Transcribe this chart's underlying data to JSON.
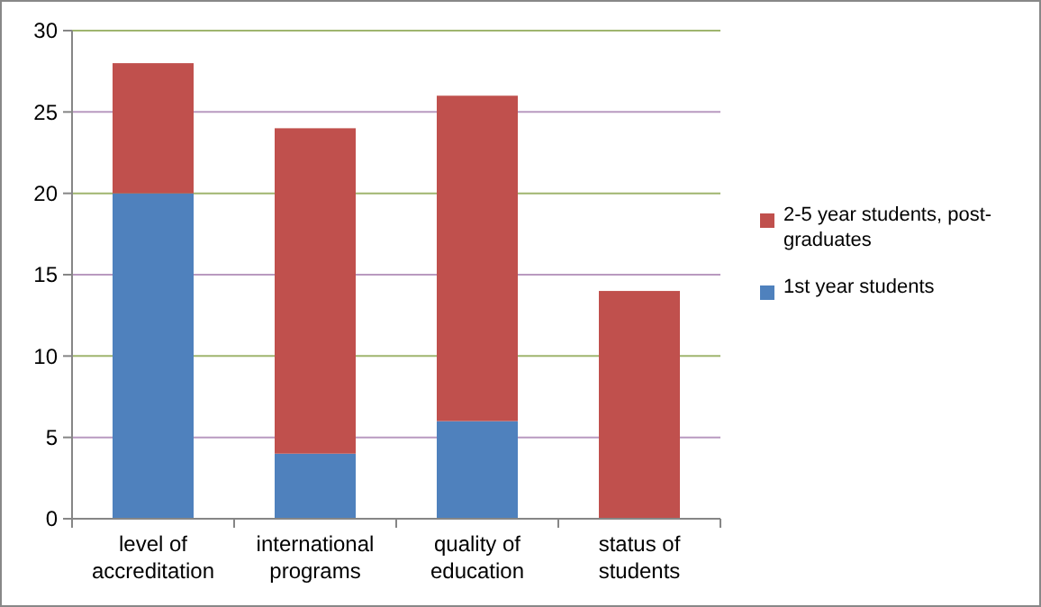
{
  "chart_data": {
    "type": "bar",
    "stacked": true,
    "categories": [
      "level of accreditation",
      "international programs",
      "quality of education",
      "status of students"
    ],
    "series": [
      {
        "name": "1st year students",
        "color": "#4f81bd",
        "values": [
          20,
          4,
          6,
          0
        ]
      },
      {
        "name": "2-5 year students, post-graduates",
        "color": "#c0504d",
        "values": [
          8,
          20,
          20,
          14
        ]
      }
    ],
    "ylim": [
      0,
      30
    ],
    "yticks": [
      0,
      5,
      10,
      15,
      20,
      25,
      30
    ],
    "grid": "y",
    "legend": "right"
  }
}
